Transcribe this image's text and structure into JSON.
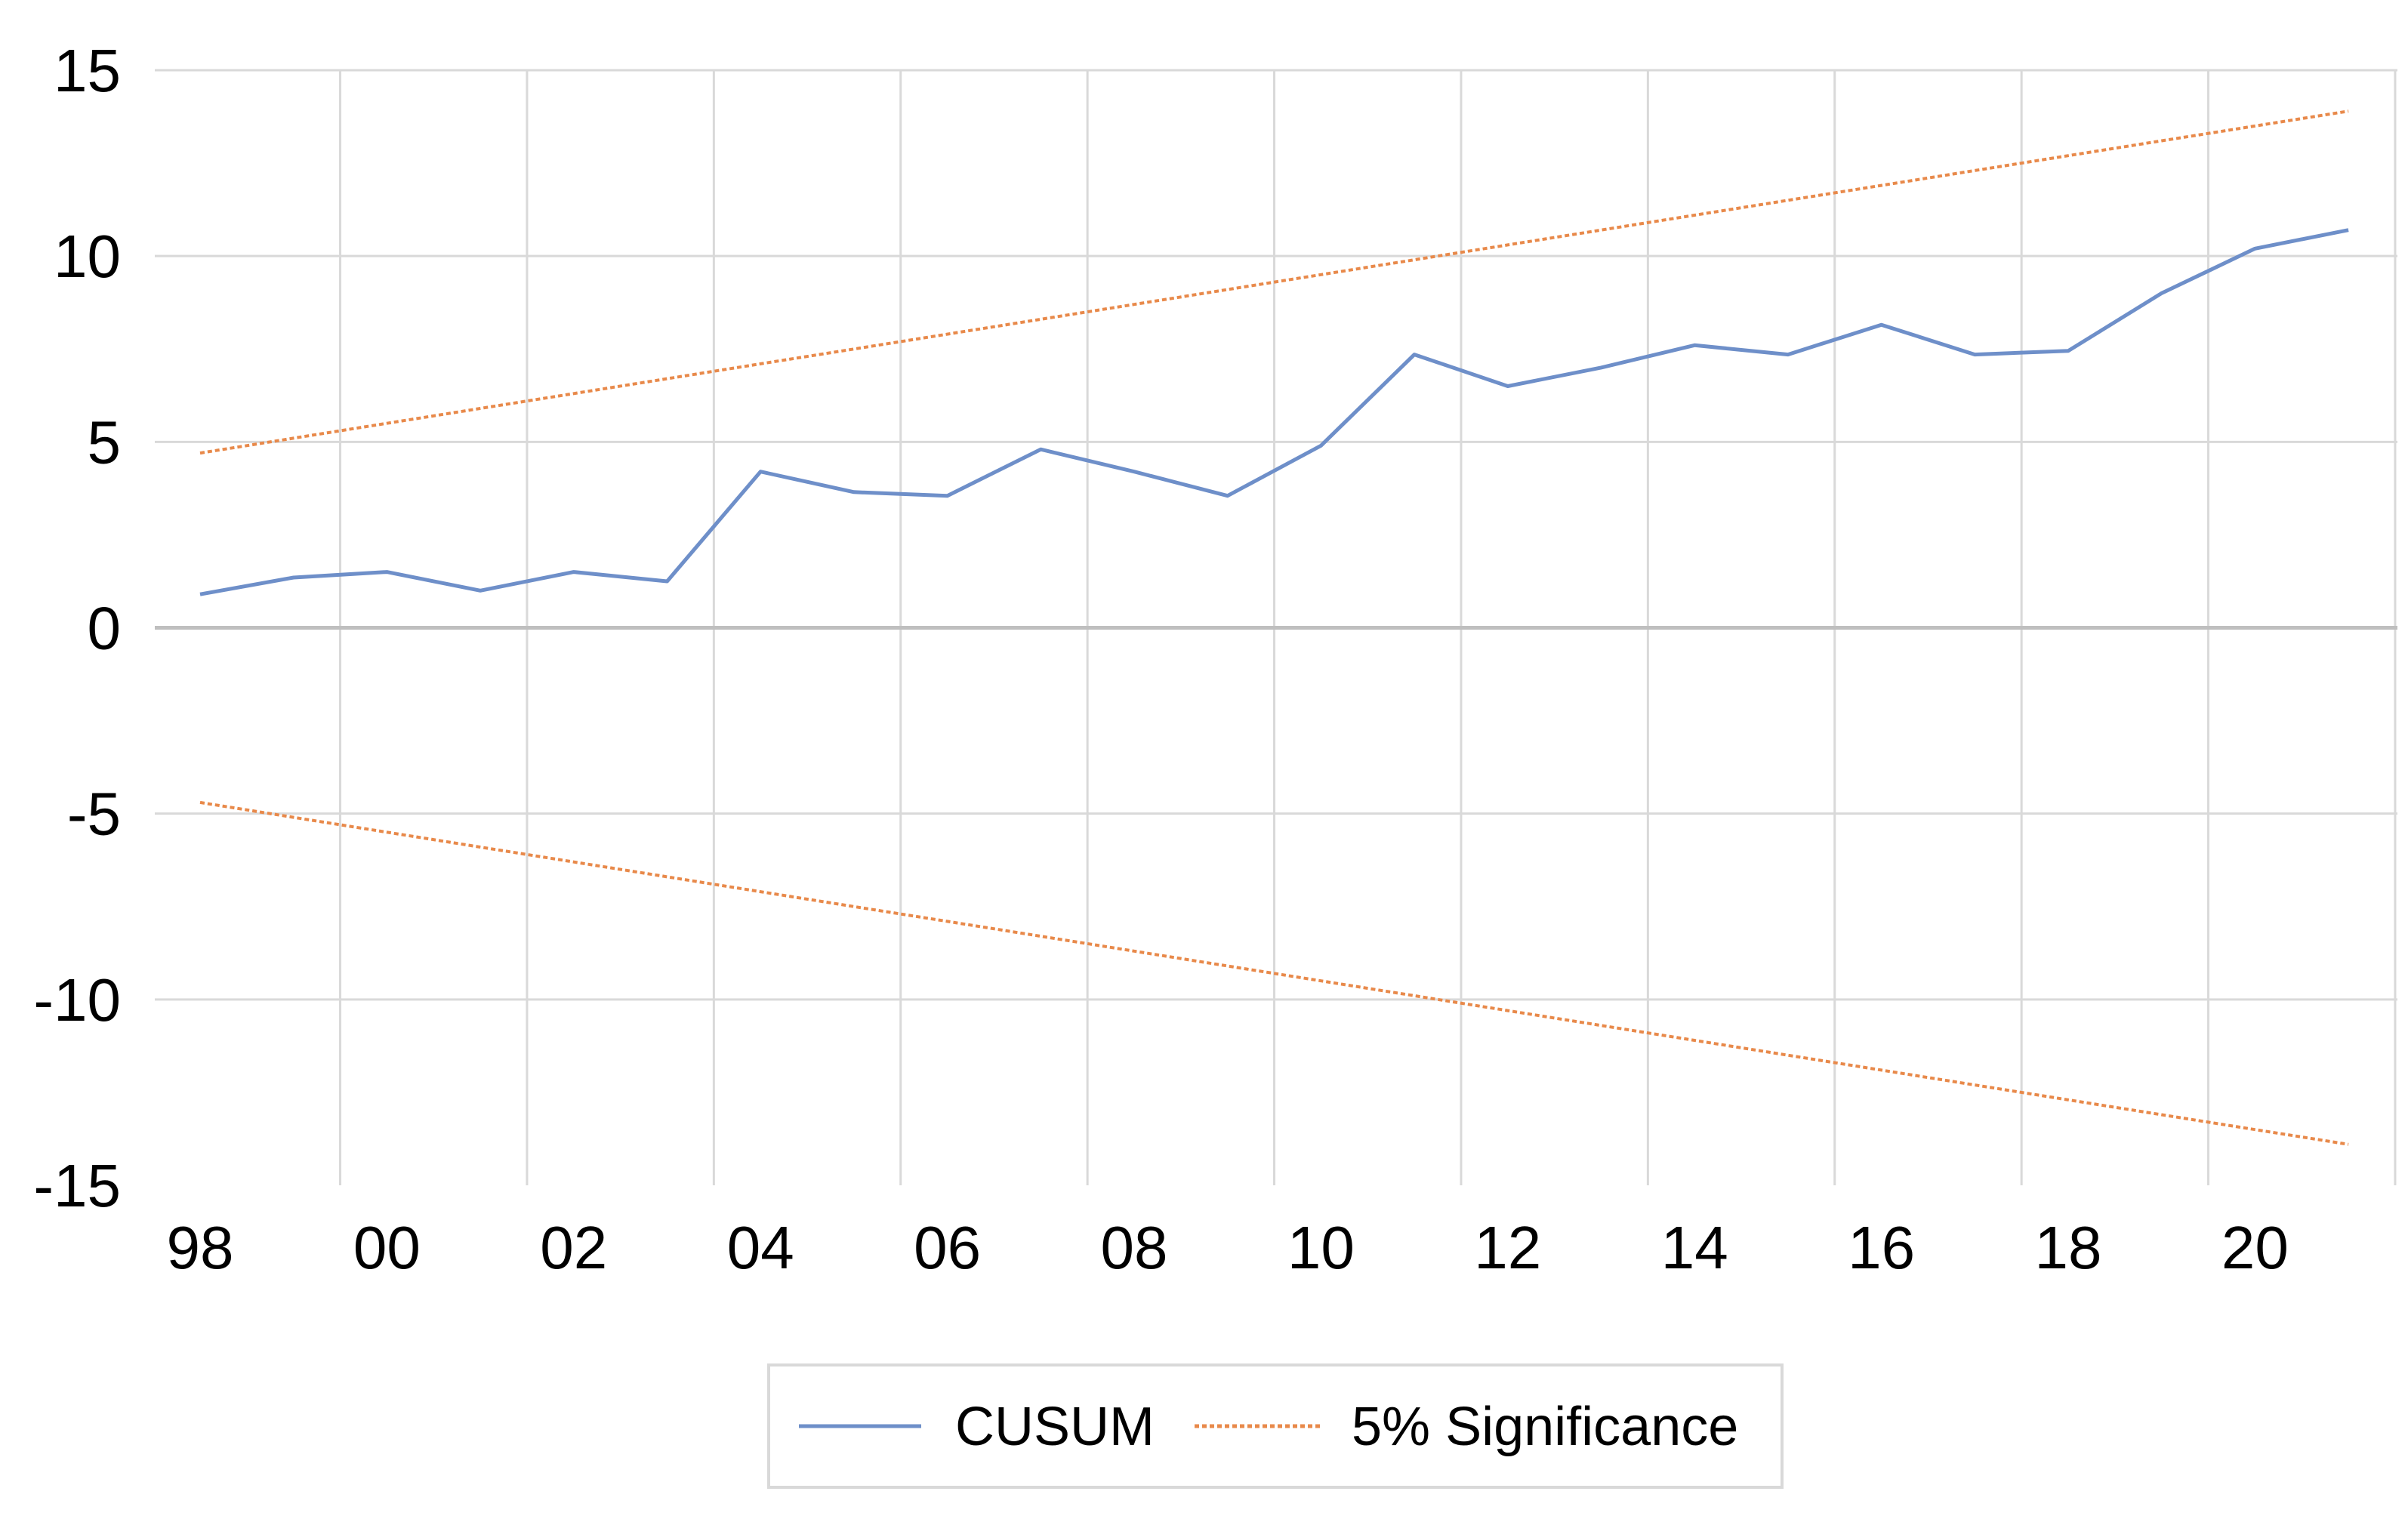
{
  "chart_data": {
    "type": "line",
    "x": [
      "1998",
      "1999",
      "2000",
      "2001",
      "2002",
      "2003",
      "2004",
      "2005",
      "2006",
      "2007",
      "2008",
      "2009",
      "2010",
      "2011",
      "2012",
      "2013",
      "2014",
      "2015",
      "2016",
      "2017",
      "2018",
      "2019",
      "2020",
      "2021"
    ],
    "x_tick_labels": [
      "98",
      "00",
      "02",
      "04",
      "06",
      "08",
      "10",
      "12",
      "14",
      "16",
      "18",
      "20"
    ],
    "y_ticks": [
      15,
      10,
      5,
      0,
      -5,
      -10,
      -15
    ],
    "ylim": [
      -15,
      15
    ],
    "grid": true,
    "legend_position": "bottom",
    "series": [
      {
        "name": "CUSUM",
        "style": "solid",
        "color": "#6E8FC9",
        "values": [
          0.9,
          1.35,
          1.5,
          1.0,
          1.5,
          1.25,
          4.2,
          3.65,
          3.55,
          4.8,
          4.2,
          3.55,
          4.9,
          7.35,
          6.5,
          7.0,
          7.6,
          7.35,
          8.15,
          7.35,
          7.45,
          9.0,
          10.2,
          10.7
        ]
      },
      {
        "name": "5% Significance",
        "style": "dotted",
        "color": "#E8894A",
        "values": [
          4.7,
          5.1,
          5.5,
          5.9,
          6.3,
          6.7,
          7.1,
          7.5,
          7.9,
          8.3,
          8.7,
          9.1,
          9.5,
          9.9,
          10.3,
          10.7,
          11.1,
          11.5,
          11.9,
          12.3,
          12.7,
          13.1,
          13.5,
          13.9
        ]
      },
      {
        "name": "",
        "style": "dotted",
        "color": "#E8894A",
        "values": [
          -4.7,
          -5.1,
          -5.5,
          -5.9,
          -6.3,
          -6.7,
          -7.1,
          -7.5,
          -7.9,
          -8.3,
          -8.7,
          -9.1,
          -9.5,
          -9.9,
          -10.3,
          -10.7,
          -11.1,
          -11.5,
          -11.9,
          -12.3,
          -12.7,
          -13.1,
          -13.5,
          -13.9
        ]
      }
    ]
  },
  "colors": {
    "gridline": "#D9D9D9",
    "zero_line": "#BFBFBF",
    "legend_border": "#D9D9D9"
  }
}
